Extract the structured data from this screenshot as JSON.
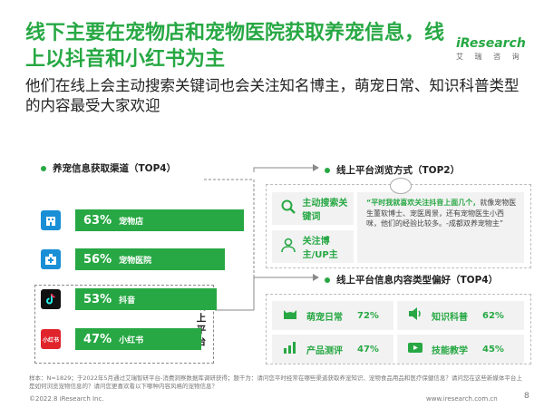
{
  "header": {
    "title": "线下主要在宠物店和宠物医院获取养宠信息，线上以抖音和小红书为主",
    "subtitle": "他们在线上会主动搜索关键词也会关注知名博主，萌宠日常、知识科普类型的内容最受大家欢迎"
  },
  "logo": {
    "name": "iResearch",
    "sub": "艾 瑞 咨 询"
  },
  "channels": {
    "heading": "养宠信息获取渠道（TOP4）",
    "online_label": "线上平台",
    "items": [
      {
        "name": "宠物店",
        "value": 63,
        "value_label": "63%",
        "icon": "building-icon",
        "icon_color": "#1a8fd6"
      },
      {
        "name": "宠物医院",
        "value": 56,
        "value_label": "56%",
        "icon": "hospital-icon",
        "icon_color": "#1a8fd6"
      },
      {
        "name": "抖音",
        "value": 53,
        "value_label": "53%",
        "icon": "douyin-icon",
        "icon_color": "#111111"
      },
      {
        "name": "小红书",
        "value": 47,
        "value_label": "47%",
        "icon": "xiaohongshu-icon",
        "icon_color": "#e0242c",
        "icon_text": "小红书"
      }
    ]
  },
  "browse": {
    "heading": "线上平台浏览方式（TOP2）",
    "items": [
      {
        "name": "主动搜索关键词",
        "icon": "search-icon"
      },
      {
        "name": "关注博主/UP主",
        "icon": "person-icon"
      }
    ],
    "quote_lead": "“平时我就喜欢关注抖音上面几个，",
    "quote_body": "就像宠物医生董软博士、宠医周景，还有宠物医生小西咪，他们的经验比较多。-成都双养宠物主”"
  },
  "content": {
    "heading": "线上平台信息内容类型偏好（TOP4）",
    "items": [
      {
        "name": "萌宠日常",
        "value_label": "72%",
        "icon": "cat-icon"
      },
      {
        "name": "知识科普",
        "value_label": "62%",
        "icon": "speaker-icon"
      },
      {
        "name": "产品测评",
        "value_label": "47%",
        "icon": "chart-icon"
      },
      {
        "name": "技能教学",
        "value_label": "45%",
        "icon": "video-icon"
      }
    ]
  },
  "footer": {
    "note": "样本：N=1829；于2022年5月通过艾瑞智研平台-消费洞察数据库调研获得；题干为：请问您平时经常在哪些渠道获取养宠知识、宠物食品用品和医疗保健信息？请问您在这些新媒体平台上是如何浏览宠物信息的？请问您更喜欢看以下哪种内容风格的宠物信息？",
    "copyright": "©2022.8 iResearch Inc.",
    "website": "www.iresearch.com.cn",
    "page": "8"
  },
  "colors": {
    "brand_green": "#27a844",
    "tile_bg": "#f2f2f2"
  }
}
